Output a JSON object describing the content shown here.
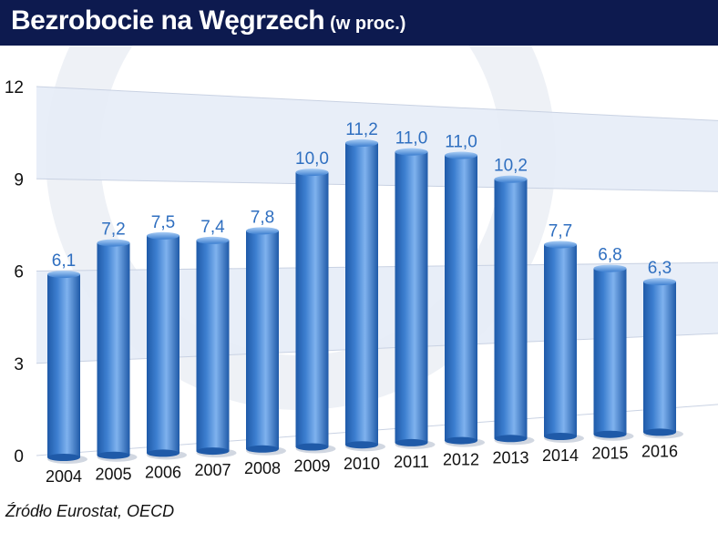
{
  "header": {
    "title": "Bezrobocie na Węgrzech",
    "subtitle": "(w proc.)"
  },
  "source": "Źródło Eurostat, OECD",
  "colors": {
    "header_bg": "#0d1a4f",
    "bar": "#3d7fd0",
    "bar_dark": "#1f5aa8",
    "bar_light": "#7fb2ee",
    "value_label": "#2f6fc0",
    "band": "#e6ecf7"
  },
  "chart_data": {
    "type": "bar",
    "categories": [
      "2004",
      "2005",
      "2006",
      "2007",
      "2008",
      "2009",
      "2010",
      "2011",
      "2012",
      "2013",
      "2014",
      "2015",
      "2016"
    ],
    "values": [
      6.1,
      7.2,
      7.5,
      7.4,
      7.8,
      10.0,
      11.2,
      11.0,
      11.0,
      10.2,
      7.7,
      6.8,
      6.3
    ],
    "value_labels": [
      "6,1",
      "7,2",
      "7,5",
      "7,4",
      "7,8",
      "10,0",
      "11,2",
      "11,0",
      "11,0",
      "10,2",
      "7,7",
      "6,8",
      "6,3"
    ],
    "yticks": [
      0,
      3,
      6,
      9,
      12
    ],
    "ytick_labels": [
      "0",
      "3",
      "6",
      "9",
      "12"
    ],
    "ylim": [
      0,
      12
    ],
    "title": "Bezrobocie na Węgrzech",
    "xlabel": "",
    "ylabel": "",
    "grid": true,
    "legend": "none"
  }
}
